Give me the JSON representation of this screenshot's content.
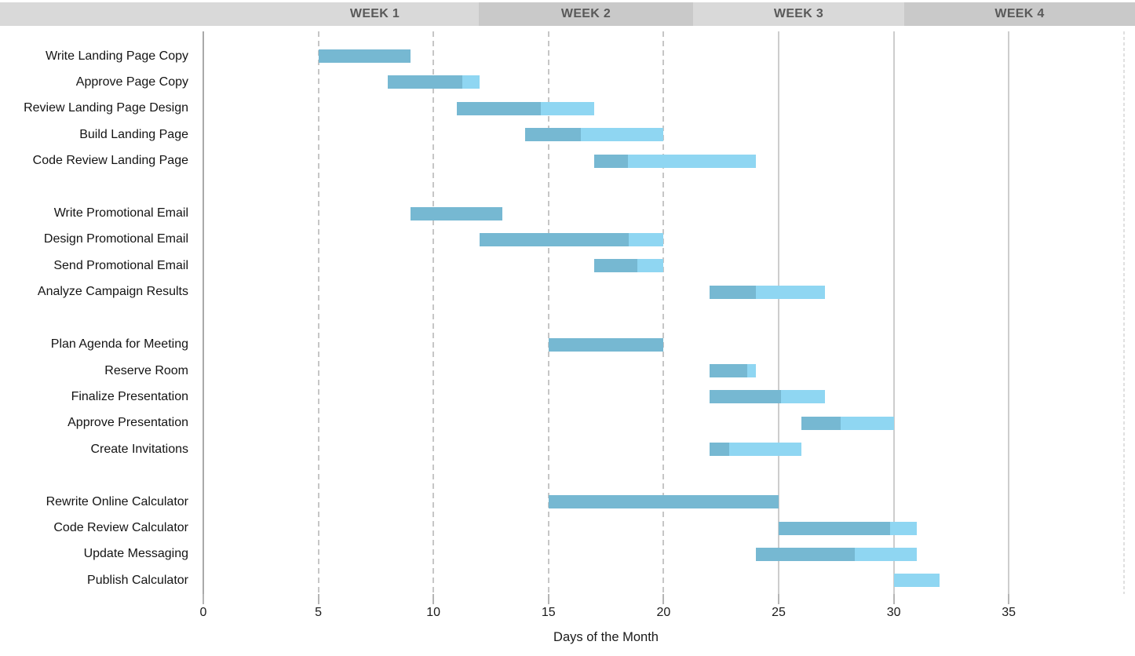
{
  "chart_data": {
    "type": "gantt",
    "title": "",
    "xlabel": "Days of the Month",
    "x_ticks": [
      0,
      5,
      10,
      15,
      20,
      25,
      30,
      35
    ],
    "x_axis_max": 40,
    "x_gridlines_dashed": [
      5,
      10,
      15,
      20
    ],
    "x_gridlines_solid": [
      25,
      30,
      35
    ],
    "x_gridline_faint": 40,
    "legend": "none",
    "bar_colors": {
      "completed": "#76b8d2",
      "remaining": "#8fd6f2"
    },
    "week_header": [
      "WEEK 1",
      "WEEK 2",
      "WEEK 3",
      "WEEK 4"
    ],
    "groups": [
      {
        "tasks": [
          {
            "label": "Write Landing Page Copy",
            "start": 5,
            "complete_until": 9,
            "end": 9
          },
          {
            "label": "Approve Page Copy",
            "start": 8,
            "complete_until": 11.25,
            "end": 12
          },
          {
            "label": "Review Landing Page Design",
            "start": 11,
            "complete_until": 14.65,
            "end": 17
          },
          {
            "label": "Build Landing Page",
            "start": 14,
            "complete_until": 16.4,
            "end": 20
          },
          {
            "label": "Code Review Landing Page",
            "start": 17,
            "complete_until": 18.45,
            "end": 24
          }
        ]
      },
      {
        "tasks": [
          {
            "label": "Write Promotional Email",
            "start": 9,
            "complete_until": 13,
            "end": 13
          },
          {
            "label": "Design Promotional Email",
            "start": 12,
            "complete_until": 18.5,
            "end": 20
          },
          {
            "label": "Send Promotional Email",
            "start": 17,
            "complete_until": 18.85,
            "end": 20
          },
          {
            "label": "Analyze Campaign Results",
            "start": 22,
            "complete_until": 24,
            "end": 27
          }
        ]
      },
      {
        "tasks": [
          {
            "label": "Plan Agenda for Meeting",
            "start": 15,
            "complete_until": 20,
            "end": 20
          },
          {
            "label": "Reserve Room",
            "start": 22,
            "complete_until": 23.65,
            "end": 24
          },
          {
            "label": "Finalize Presentation",
            "start": 22,
            "complete_until": 25.1,
            "end": 27
          },
          {
            "label": "Approve Presentation",
            "start": 26,
            "complete_until": 27.7,
            "end": 30
          },
          {
            "label": "Create Invitations",
            "start": 22,
            "complete_until": 22.85,
            "end": 26
          }
        ]
      },
      {
        "tasks": [
          {
            "label": "Rewrite Online Calculator",
            "start": 15,
            "complete_until": 25,
            "end": 25
          },
          {
            "label": "Code Review Calculator",
            "start": 25,
            "complete_until": 29.85,
            "end": 31
          },
          {
            "label": "Update Messaging",
            "start": 24,
            "complete_until": 28.3,
            "end": 31
          },
          {
            "label": "Publish Calculator",
            "start": 30,
            "complete_until": 30,
            "end": 32
          }
        ]
      }
    ]
  }
}
